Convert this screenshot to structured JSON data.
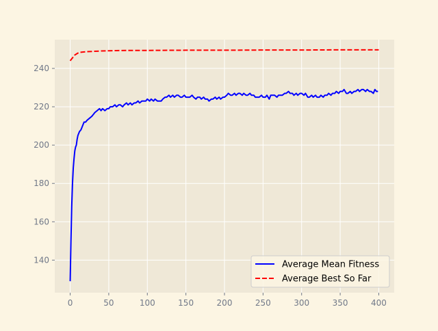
{
  "chart_data": {
    "type": "line",
    "title": "",
    "xlabel": "",
    "ylabel": "",
    "xlim": [
      -20,
      420
    ],
    "ylim": [
      123,
      255
    ],
    "xticks": [
      0,
      50,
      100,
      150,
      200,
      250,
      300,
      350,
      400
    ],
    "yticks": [
      140,
      160,
      180,
      200,
      220,
      240
    ],
    "grid": true,
    "legend_position": "lower-right",
    "colors": {
      "plot_bg": "#efe8d7",
      "page_bg": "#fcf5e3",
      "grid": "#ffffff",
      "tick_label": "#707888"
    },
    "series": [
      {
        "name": "Average Mean Fitness",
        "color": "#0000ff",
        "style": "solid",
        "x": [
          0,
          1,
          2,
          3,
          4,
          5,
          6,
          7,
          8,
          9,
          10,
          12,
          14,
          16,
          18,
          20,
          22,
          25,
          28,
          30,
          32,
          35,
          38,
          40,
          42,
          45,
          48,
          50,
          52,
          55,
          58,
          60,
          63,
          65,
          68,
          70,
          73,
          75,
          78,
          80,
          83,
          85,
          88,
          90,
          93,
          95,
          98,
          100,
          103,
          105,
          108,
          110,
          113,
          115,
          118,
          120,
          123,
          125,
          128,
          130,
          133,
          135,
          138,
          140,
          143,
          145,
          148,
          150,
          153,
          155,
          158,
          160,
          163,
          165,
          168,
          170,
          173,
          175,
          178,
          180,
          183,
          185,
          188,
          190,
          193,
          195,
          198,
          200,
          203,
          205,
          208,
          210,
          213,
          215,
          218,
          220,
          223,
          225,
          228,
          230,
          233,
          235,
          238,
          240,
          243,
          245,
          248,
          250,
          253,
          255,
          258,
          260,
          263,
          265,
          268,
          270,
          273,
          275,
          278,
          280,
          283,
          285,
          288,
          290,
          293,
          295,
          298,
          300,
          303,
          305,
          308,
          310,
          313,
          315,
          318,
          320,
          323,
          325,
          328,
          330,
          333,
          335,
          338,
          340,
          343,
          345,
          348,
          350,
          353,
          355,
          358,
          360,
          363,
          365,
          368,
          370,
          373,
          375,
          378,
          380,
          383,
          385,
          388,
          390,
          393,
          395,
          397,
          399
        ],
        "y": [
          129,
          150,
          168,
          180,
          188,
          193,
          197,
          199,
          200,
          203,
          205,
          207,
          208,
          210,
          212,
          212,
          213,
          214,
          215,
          216,
          217,
          218,
          219,
          218,
          219,
          218,
          219,
          219,
          220,
          220,
          221,
          220,
          221,
          221,
          220,
          221,
          222,
          221,
          222,
          221,
          222,
          222,
          223,
          222,
          223,
          223,
          223,
          224,
          223,
          224,
          223,
          224,
          223,
          223,
          223,
          224,
          225,
          225,
          226,
          225,
          226,
          225,
          226,
          226,
          225,
          225,
          226,
          225,
          225,
          225,
          226,
          225,
          224,
          225,
          225,
          224,
          225,
          224,
          224,
          223,
          224,
          224,
          225,
          224,
          225,
          224,
          225,
          225,
          226,
          227,
          226,
          226,
          227,
          226,
          227,
          227,
          226,
          227,
          226,
          226,
          227,
          226,
          226,
          225,
          225,
          225,
          226,
          225,
          225,
          226,
          224,
          226,
          226,
          226,
          225,
          226,
          226,
          226,
          227,
          227,
          228,
          227,
          227,
          226,
          227,
          226,
          227,
          227,
          226,
          227,
          225,
          225,
          226,
          225,
          226,
          225,
          225,
          226,
          225,
          226,
          226,
          227,
          226,
          227,
          227,
          228,
          227,
          228,
          228,
          229,
          227,
          227,
          228,
          227,
          228,
          228,
          229,
          228,
          229,
          229,
          228,
          229,
          228,
          228,
          227,
          229,
          228,
          228
        ]
      },
      {
        "name": "Average Best So Far",
        "color": "#ff0000",
        "style": "dashed",
        "x": [
          0,
          2,
          4,
          6,
          8,
          10,
          12,
          15,
          20,
          25,
          30,
          35,
          40,
          50,
          60,
          80,
          100,
          150,
          200,
          250,
          300,
          350,
          400
        ],
        "y": [
          244,
          245,
          246,
          247,
          247.5,
          248,
          248.3,
          248.5,
          248.7,
          248.8,
          248.9,
          249,
          249.1,
          249.2,
          249.3,
          249.4,
          249.4,
          249.5,
          249.5,
          249.6,
          249.6,
          249.7,
          249.7
        ]
      }
    ],
    "legend": [
      "Average Mean Fitness",
      "Average Best So Far"
    ]
  }
}
